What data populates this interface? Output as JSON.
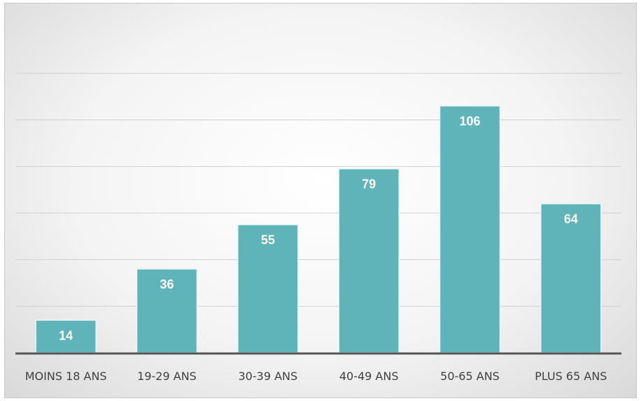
{
  "chart_data": {
    "type": "bar",
    "categories": [
      "MOINS 18 ANS",
      "19-29 ANS",
      "30-39 ANS",
      "40-49 ANS",
      "50-65 ANS",
      "PLUS 65 ANS"
    ],
    "values": [
      14,
      36,
      55,
      79,
      106,
      64
    ],
    "ylim": [
      0,
      120
    ],
    "grid": true,
    "colors": {
      "bar": "#5fb4ba",
      "bar_edge": "#e8f4f5",
      "gridline": "#d0d0d0",
      "axis": "#555555"
    }
  }
}
